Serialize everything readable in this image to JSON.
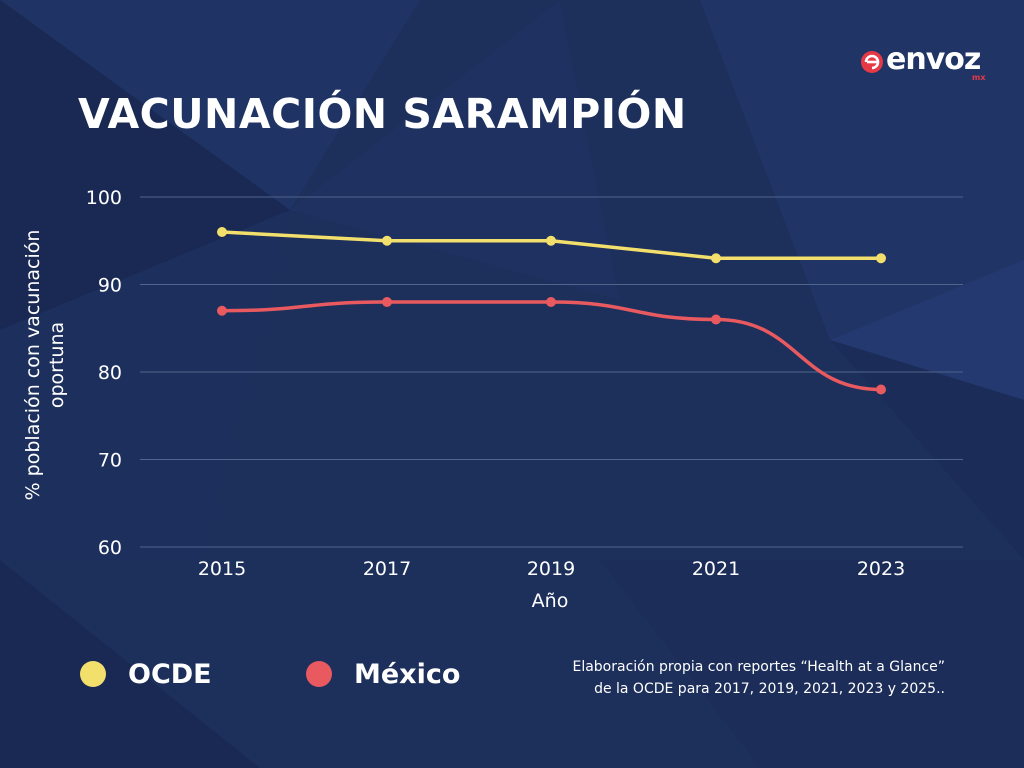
{
  "title": "VACUNACIÓN SARAMPIÓN",
  "logo": {
    "word": "envoz",
    "sub": "mx"
  },
  "colors": {
    "background": "#1d2f5b",
    "ocde": "#f3df6c",
    "mexico": "#e85a5f",
    "grid": "#51648c"
  },
  "chart_data": {
    "type": "line",
    "x": [
      2015,
      2017,
      2019,
      2021,
      2023
    ],
    "tick_labels": [
      "2015",
      "2017",
      "2019",
      "2021",
      "2023"
    ],
    "xlabel": "Año",
    "ylabel": "% población con vacunación oportuna",
    "ylim": [
      60,
      100
    ],
    "yticks": [
      60,
      70,
      80,
      90,
      100
    ],
    "grid": true,
    "legend_position": "bottom-left",
    "series": [
      {
        "name": "OCDE",
        "color": "#f3df6c",
        "values": [
          96,
          95,
          95,
          93,
          93
        ]
      },
      {
        "name": "México",
        "color": "#e85a5f",
        "values": [
          87,
          88,
          88,
          86,
          78
        ]
      }
    ]
  },
  "source": {
    "line1": "Elaboración propia con reportes “Health at a Glance”",
    "line2": "de la OCDE para 2017, 2019, 2021, 2023 y 2025.."
  }
}
